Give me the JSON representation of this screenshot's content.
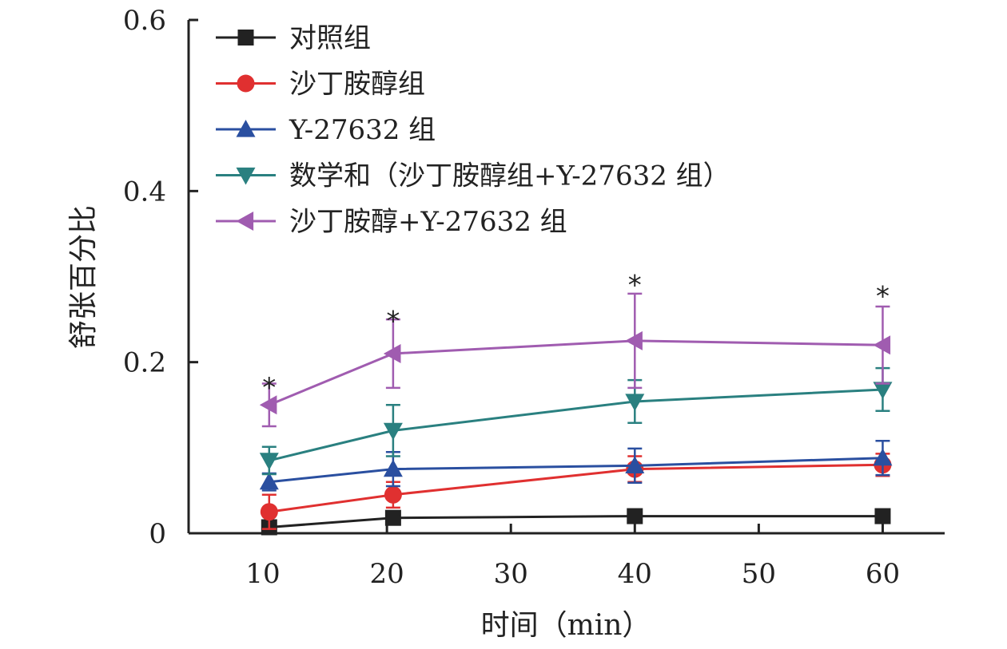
{
  "chart_data": {
    "type": "line",
    "xlabel": "时间（min）",
    "ylabel": "舒张百分比",
    "x_ticks": [
      10,
      20,
      30,
      40,
      50,
      60
    ],
    "y_ticks": [
      "0",
      "0.2",
      "0.4",
      "0.6"
    ],
    "y_tick_values": [
      0,
      0.2,
      0.4,
      0.6
    ],
    "xlim": [
      4,
      65
    ],
    "ylim": [
      0,
      0.6
    ],
    "x": [
      10.5,
      20.5,
      40,
      60
    ],
    "legend_position": "top-left",
    "significance_marker": "*",
    "significance_x": [
      10.5,
      20.5,
      40,
      60
    ],
    "significance_y": [
      0.18,
      0.258,
      0.3,
      0.287
    ],
    "series": [
      {
        "name": "对照组",
        "marker": "square",
        "color": "#222222",
        "values": [
          0.007,
          0.018,
          0.02,
          0.02
        ],
        "errors": [
          0.003,
          0.004,
          0.004,
          0.004
        ]
      },
      {
        "name": "沙丁胺醇组",
        "marker": "circle",
        "color": "#e03030",
        "values": [
          0.025,
          0.045,
          0.075,
          0.08
        ],
        "errors": [
          0.02,
          0.015,
          0.015,
          0.013
        ]
      },
      {
        "name": "Y-27632 组",
        "marker": "triangle-up",
        "color": "#2a4fa0",
        "values": [
          0.06,
          0.075,
          0.079,
          0.088
        ],
        "errors": [
          0.01,
          0.02,
          0.02,
          0.02
        ]
      },
      {
        "name": "数学和（沙丁胺醇组+Y-27632 组）",
        "marker": "triangle-down",
        "color": "#2a8080",
        "values": [
          0.085,
          0.12,
          0.154,
          0.168
        ],
        "errors": [
          0.016,
          0.03,
          0.025,
          0.025
        ]
      },
      {
        "name": "沙丁胺醇+Y-27632 组",
        "marker": "triangle-left",
        "color": "#a05cb0",
        "values": [
          0.15,
          0.21,
          0.225,
          0.22
        ],
        "errors": [
          0.025,
          0.04,
          0.055,
          0.045
        ]
      }
    ]
  }
}
